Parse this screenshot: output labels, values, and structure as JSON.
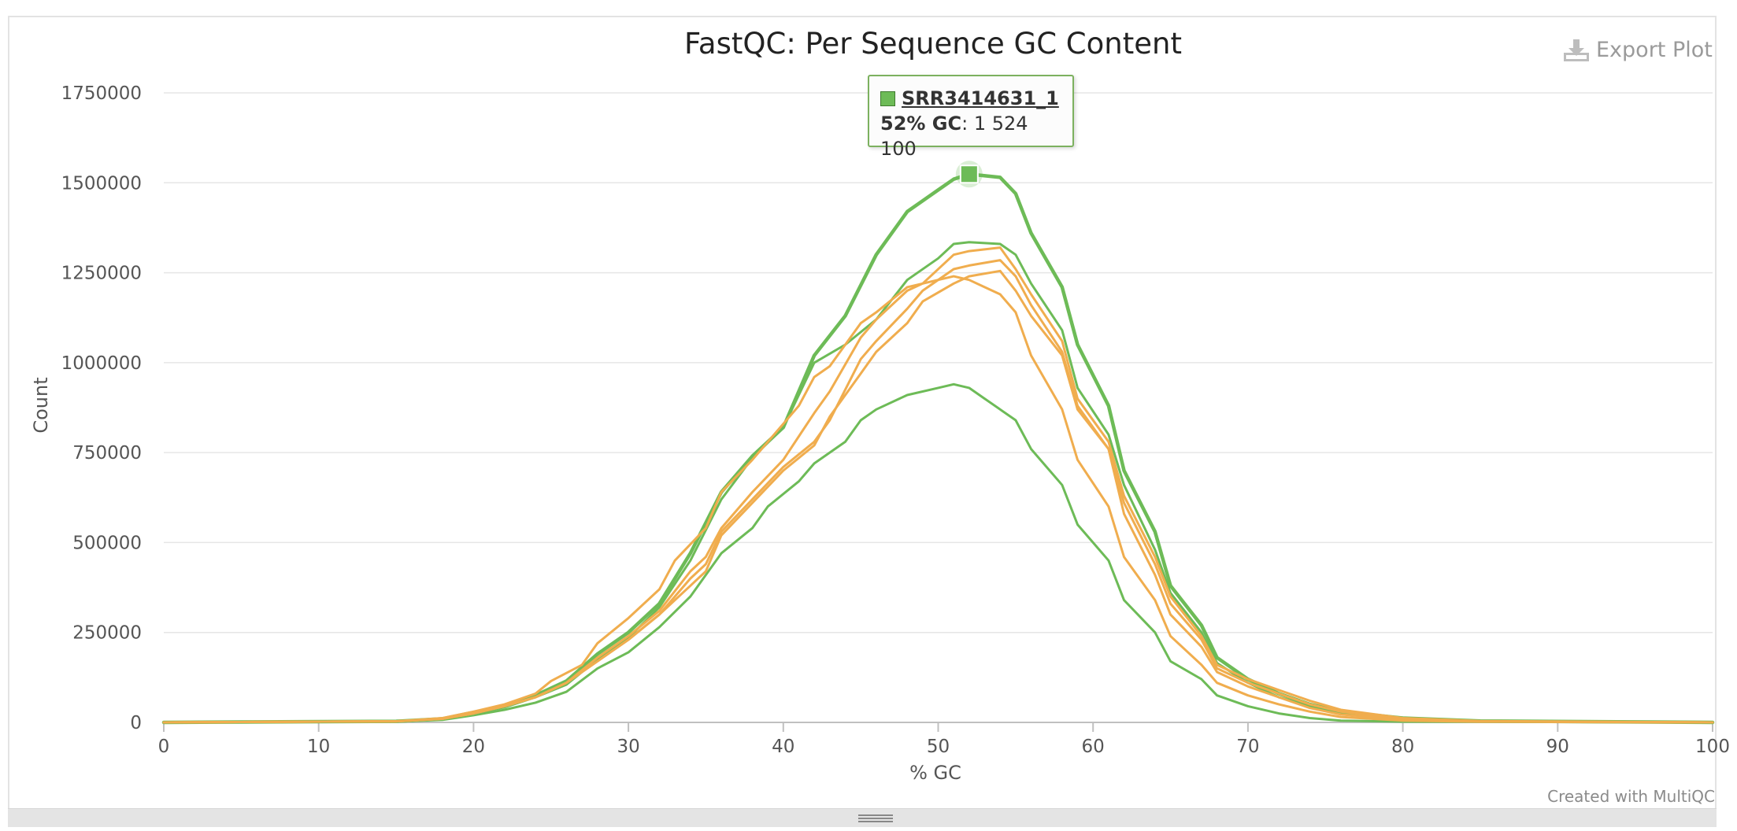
{
  "export_label": "Export Plot",
  "credit": "Created with MultiQC",
  "tooltip": {
    "sample": "SRR3414631_1",
    "x_label": "52% GC",
    "value_text": "1 524 100"
  },
  "colors": {
    "pass": "#6dbb57",
    "warn": "#f0ad4e"
  },
  "chart_data": {
    "type": "line",
    "title": "FastQC: Per Sequence GC Content",
    "xlabel": "% GC",
    "ylabel": "Count",
    "xlim": [
      0,
      100
    ],
    "ylim": [
      0,
      1750000
    ],
    "xticks": [
      0,
      10,
      20,
      30,
      40,
      50,
      60,
      70,
      80,
      90,
      100
    ],
    "yticks": [
      0,
      250000,
      500000,
      750000,
      1000000,
      1250000,
      1500000,
      1750000
    ],
    "grid": true,
    "highlight": {
      "x": 52,
      "y": 1524100
    },
    "series": [
      {
        "color": "#6dbb57",
        "width": 3,
        "points": [
          [
            0,
            0
          ],
          [
            15,
            3000
          ],
          [
            18,
            10000
          ],
          [
            20,
            28000
          ],
          [
            22,
            45000
          ],
          [
            24,
            75000
          ],
          [
            26,
            115000
          ],
          [
            28,
            190000
          ],
          [
            30,
            250000
          ],
          [
            32,
            330000
          ],
          [
            34,
            470000
          ],
          [
            36,
            640000
          ],
          [
            38,
            740000
          ],
          [
            40,
            820000
          ],
          [
            42,
            1020000
          ],
          [
            44,
            1130000
          ],
          [
            46,
            1300000
          ],
          [
            48,
            1420000
          ],
          [
            50,
            1480000
          ],
          [
            51,
            1510000
          ],
          [
            52,
            1524100
          ],
          [
            54,
            1515000
          ],
          [
            55,
            1470000
          ],
          [
            56,
            1360000
          ],
          [
            58,
            1210000
          ],
          [
            59,
            1050000
          ],
          [
            61,
            880000
          ],
          [
            62,
            700000
          ],
          [
            64,
            530000
          ],
          [
            65,
            380000
          ],
          [
            67,
            270000
          ],
          [
            68,
            180000
          ],
          [
            70,
            120000
          ],
          [
            72,
            80000
          ],
          [
            74,
            50000
          ],
          [
            76,
            30000
          ],
          [
            80,
            12000
          ],
          [
            85,
            4000
          ],
          [
            100,
            0
          ]
        ]
      },
      {
        "color": "#6dbb57",
        "width": 2,
        "points": [
          [
            0,
            0
          ],
          [
            15,
            3000
          ],
          [
            18,
            9000
          ],
          [
            20,
            25000
          ],
          [
            22,
            42000
          ],
          [
            24,
            70000
          ],
          [
            26,
            105000
          ],
          [
            28,
            175000
          ],
          [
            30,
            235000
          ],
          [
            32,
            320000
          ],
          [
            34,
            450000
          ],
          [
            36,
            620000
          ],
          [
            38,
            735000
          ],
          [
            40,
            820000
          ],
          [
            42,
            1000000
          ],
          [
            44,
            1050000
          ],
          [
            46,
            1120000
          ],
          [
            48,
            1230000
          ],
          [
            50,
            1290000
          ],
          [
            51,
            1330000
          ],
          [
            52,
            1335000
          ],
          [
            54,
            1330000
          ],
          [
            55,
            1300000
          ],
          [
            56,
            1220000
          ],
          [
            58,
            1090000
          ],
          [
            59,
            930000
          ],
          [
            61,
            800000
          ],
          [
            62,
            660000
          ],
          [
            64,
            480000
          ],
          [
            65,
            360000
          ],
          [
            67,
            250000
          ],
          [
            68,
            165000
          ],
          [
            70,
            110000
          ],
          [
            72,
            70000
          ],
          [
            74,
            45000
          ],
          [
            76,
            25000
          ],
          [
            80,
            10000
          ],
          [
            85,
            3000
          ],
          [
            100,
            0
          ]
        ]
      },
      {
        "color": "#6dbb57",
        "width": 2,
        "points": [
          [
            0,
            0
          ],
          [
            15,
            2000
          ],
          [
            18,
            7000
          ],
          [
            20,
            20000
          ],
          [
            22,
            35000
          ],
          [
            24,
            55000
          ],
          [
            26,
            85000
          ],
          [
            28,
            150000
          ],
          [
            30,
            195000
          ],
          [
            32,
            265000
          ],
          [
            34,
            350000
          ],
          [
            36,
            470000
          ],
          [
            38,
            540000
          ],
          [
            39,
            600000
          ],
          [
            41,
            670000
          ],
          [
            42,
            720000
          ],
          [
            44,
            780000
          ],
          [
            45,
            840000
          ],
          [
            46,
            870000
          ],
          [
            48,
            910000
          ],
          [
            50,
            930000
          ],
          [
            51,
            940000
          ],
          [
            52,
            930000
          ],
          [
            53,
            900000
          ],
          [
            55,
            840000
          ],
          [
            56,
            760000
          ],
          [
            58,
            660000
          ],
          [
            59,
            550000
          ],
          [
            61,
            450000
          ],
          [
            62,
            340000
          ],
          [
            64,
            250000
          ],
          [
            65,
            170000
          ],
          [
            67,
            120000
          ],
          [
            68,
            75000
          ],
          [
            70,
            45000
          ],
          [
            72,
            25000
          ],
          [
            74,
            12000
          ],
          [
            76,
            5000
          ],
          [
            80,
            2000
          ],
          [
            100,
            0
          ]
        ]
      },
      {
        "color": "#f0ad4e",
        "width": 2,
        "points": [
          [
            0,
            0
          ],
          [
            15,
            3000
          ],
          [
            18,
            12000
          ],
          [
            20,
            30000
          ],
          [
            22,
            50000
          ],
          [
            24,
            80000
          ],
          [
            25,
            115000
          ],
          [
            27,
            160000
          ],
          [
            28,
            220000
          ],
          [
            30,
            290000
          ],
          [
            32,
            370000
          ],
          [
            33,
            450000
          ],
          [
            35,
            540000
          ],
          [
            36,
            640000
          ],
          [
            38,
            730000
          ],
          [
            40,
            830000
          ],
          [
            41,
            880000
          ],
          [
            42,
            960000
          ],
          [
            43,
            990000
          ],
          [
            45,
            1110000
          ],
          [
            46,
            1140000
          ],
          [
            48,
            1210000
          ],
          [
            50,
            1230000
          ],
          [
            51,
            1240000
          ],
          [
            52,
            1230000
          ],
          [
            53,
            1210000
          ],
          [
            54,
            1190000
          ],
          [
            55,
            1140000
          ],
          [
            56,
            1020000
          ],
          [
            58,
            870000
          ],
          [
            59,
            730000
          ],
          [
            61,
            600000
          ],
          [
            62,
            460000
          ],
          [
            64,
            340000
          ],
          [
            65,
            240000
          ],
          [
            67,
            160000
          ],
          [
            68,
            110000
          ],
          [
            70,
            75000
          ],
          [
            72,
            50000
          ],
          [
            74,
            30000
          ],
          [
            76,
            15000
          ],
          [
            80,
            5000
          ],
          [
            85,
            2000
          ],
          [
            100,
            0
          ]
        ]
      },
      {
        "color": "#f0ad4e",
        "width": 2,
        "points": [
          [
            0,
            0
          ],
          [
            15,
            3000
          ],
          [
            18,
            10000
          ],
          [
            20,
            25000
          ],
          [
            22,
            45000
          ],
          [
            24,
            70000
          ],
          [
            26,
            110000
          ],
          [
            28,
            170000
          ],
          [
            30,
            230000
          ],
          [
            32,
            300000
          ],
          [
            34,
            380000
          ],
          [
            35,
            420000
          ],
          [
            36,
            520000
          ],
          [
            38,
            610000
          ],
          [
            40,
            700000
          ],
          [
            42,
            770000
          ],
          [
            43,
            850000
          ],
          [
            45,
            970000
          ],
          [
            46,
            1030000
          ],
          [
            48,
            1110000
          ],
          [
            49,
            1170000
          ],
          [
            51,
            1220000
          ],
          [
            52,
            1240000
          ],
          [
            54,
            1255000
          ],
          [
            55,
            1200000
          ],
          [
            56,
            1130000
          ],
          [
            58,
            1020000
          ],
          [
            59,
            870000
          ],
          [
            61,
            760000
          ],
          [
            62,
            580000
          ],
          [
            64,
            410000
          ],
          [
            65,
            300000
          ],
          [
            67,
            210000
          ],
          [
            68,
            140000
          ],
          [
            70,
            100000
          ],
          [
            72,
            70000
          ],
          [
            74,
            40000
          ],
          [
            76,
            22000
          ],
          [
            80,
            8000
          ],
          [
            85,
            3000
          ],
          [
            100,
            0
          ]
        ]
      },
      {
        "color": "#f0ad4e",
        "width": 2,
        "points": [
          [
            0,
            0
          ],
          [
            15,
            3000
          ],
          [
            18,
            10000
          ],
          [
            20,
            25000
          ],
          [
            22,
            45000
          ],
          [
            24,
            70000
          ],
          [
            26,
            110000
          ],
          [
            28,
            170000
          ],
          [
            30,
            230000
          ],
          [
            32,
            300000
          ],
          [
            34,
            400000
          ],
          [
            35,
            440000
          ],
          [
            36,
            530000
          ],
          [
            38,
            620000
          ],
          [
            40,
            710000
          ],
          [
            42,
            780000
          ],
          [
            43,
            840000
          ],
          [
            45,
            1010000
          ],
          [
            46,
            1060000
          ],
          [
            48,
            1150000
          ],
          [
            49,
            1200000
          ],
          [
            51,
            1260000
          ],
          [
            52,
            1270000
          ],
          [
            54,
            1285000
          ],
          [
            55,
            1240000
          ],
          [
            56,
            1160000
          ],
          [
            58,
            1030000
          ],
          [
            59,
            880000
          ],
          [
            61,
            760000
          ],
          [
            62,
            610000
          ],
          [
            64,
            440000
          ],
          [
            65,
            330000
          ],
          [
            67,
            230000
          ],
          [
            68,
            150000
          ],
          [
            70,
            110000
          ],
          [
            72,
            80000
          ],
          [
            74,
            50000
          ],
          [
            76,
            30000
          ],
          [
            80,
            10000
          ],
          [
            85,
            3000
          ],
          [
            100,
            0
          ]
        ]
      },
      {
        "color": "#f0ad4e",
        "width": 2,
        "points": [
          [
            0,
            0
          ],
          [
            15,
            3000
          ],
          [
            18,
            10000
          ],
          [
            20,
            25000
          ],
          [
            22,
            45000
          ],
          [
            24,
            70000
          ],
          [
            26,
            110000
          ],
          [
            28,
            180000
          ],
          [
            30,
            240000
          ],
          [
            32,
            310000
          ],
          [
            34,
            420000
          ],
          [
            35,
            460000
          ],
          [
            36,
            540000
          ],
          [
            38,
            640000
          ],
          [
            40,
            730000
          ],
          [
            42,
            860000
          ],
          [
            43,
            920000
          ],
          [
            45,
            1070000
          ],
          [
            46,
            1120000
          ],
          [
            48,
            1200000
          ],
          [
            49,
            1220000
          ],
          [
            51,
            1300000
          ],
          [
            52,
            1310000
          ],
          [
            54,
            1320000
          ],
          [
            55,
            1260000
          ],
          [
            56,
            1190000
          ],
          [
            58,
            1060000
          ],
          [
            59,
            900000
          ],
          [
            61,
            780000
          ],
          [
            62,
            630000
          ],
          [
            64,
            460000
          ],
          [
            65,
            350000
          ],
          [
            67,
            240000
          ],
          [
            68,
            160000
          ],
          [
            70,
            120000
          ],
          [
            72,
            90000
          ],
          [
            74,
            60000
          ],
          [
            76,
            35000
          ],
          [
            80,
            12000
          ],
          [
            85,
            4000
          ],
          [
            100,
            0
          ]
        ]
      }
    ]
  }
}
